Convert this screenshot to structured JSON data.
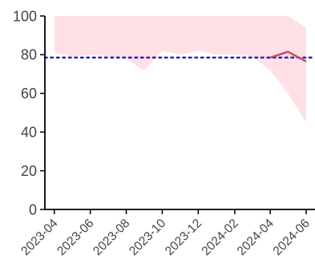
{
  "chart_data": {
    "type": "line",
    "title": "",
    "xlabel": "",
    "ylabel": "",
    "x_ticks": [
      "2023-04",
      "2023-06",
      "2023-08",
      "2023-10",
      "2023-12",
      "2024-02",
      "2024-04",
      "2024-06"
    ],
    "y_ticks": [
      0,
      20,
      40,
      60,
      80,
      100
    ],
    "ylim": [
      0,
      100
    ],
    "xlim": [
      "2023-03-16",
      "2024-06-16"
    ],
    "grid": false,
    "legend": "none",
    "reference_line": {
      "value": 78.5,
      "style": "dotted",
      "color": "#1f1fd1"
    },
    "band": {
      "color": "#ffe0e6",
      "x": [
        "2023-04-01",
        "2023-05-01",
        "2023-06-01",
        "2023-07-01",
        "2023-08-01",
        "2023-08-20",
        "2023-09-01",
        "2023-10-01",
        "2023-11-01",
        "2023-12-01",
        "2024-01-01",
        "2024-02-01",
        "2024-03-01",
        "2024-04-01",
        "2024-05-01",
        "2024-06-01"
      ],
      "lower": [
        81,
        79,
        80,
        79,
        78,
        74,
        72,
        82,
        80,
        82,
        80,
        80,
        79,
        72,
        60,
        45
      ],
      "upper": [
        100,
        100,
        100,
        100,
        100,
        100,
        100,
        100,
        100,
        100,
        100,
        100,
        100,
        100,
        100,
        94
      ]
    },
    "series": [
      {
        "color": "#c05060",
        "x": [
          "2024-04-01",
          "2024-05-01",
          "2024-06-01"
        ],
        "values": [
          78.5,
          81.5,
          76.5
        ]
      }
    ]
  }
}
